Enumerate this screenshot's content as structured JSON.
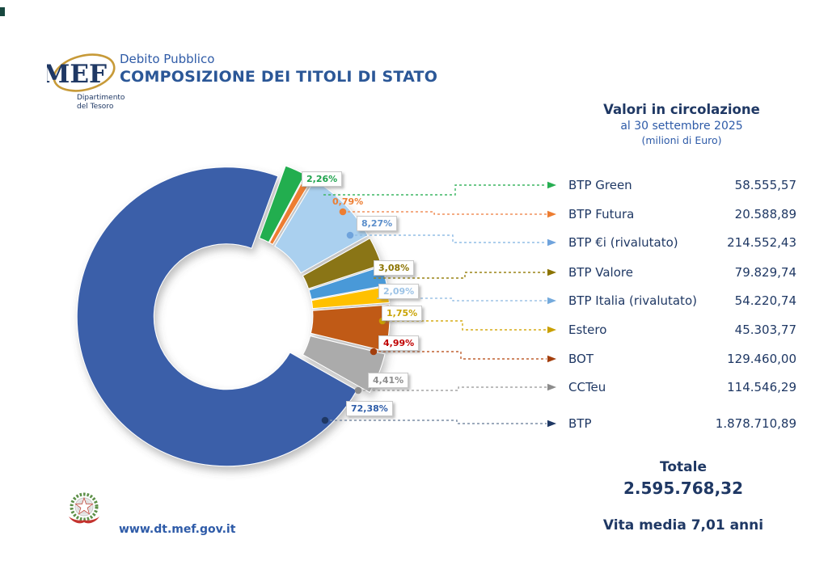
{
  "header": {
    "logo_text": "MEF",
    "logo_sub_line1": "Dipartimento",
    "logo_sub_line2": "del Tesoro",
    "pretitle": "Debito Pubblico",
    "title": "COMPOSIZIONE DEI TITOLI DI STATO"
  },
  "subheader": {
    "title": "Valori in circolazione",
    "date": "al 30 settembre 2025",
    "unit": "(milioni di Euro)"
  },
  "chart_data": {
    "type": "pie",
    "subtype": "donut",
    "title": "Composizione dei Titoli di Stato",
    "as_of": "al 30 settembre 2025",
    "unit": "milioni di Euro",
    "legend_position": "right",
    "series": [
      {
        "name": "BTP Green",
        "pct": 2.26,
        "pct_label": "2,26%",
        "value": "58.555,57",
        "color": "#24AE4F",
        "label_color": "#1FA34D",
        "line_color": "#3CB662",
        "arrow_color": "#27AE52"
      },
      {
        "name": "BTP Futura",
        "pct": 0.79,
        "pct_label": "0,79%",
        "value": "20.588,89",
        "color": "#ED7D31",
        "label_color": "#ED7D31",
        "line_color": "#F0915B",
        "arrow_color": "#ED7D31"
      },
      {
        "name": "BTP €i (rivalutato)",
        "pct": 8.27,
        "pct_label": "8,27%",
        "value": "214.552,43",
        "color": "#AAD0EF",
        "label_color": "#5B8ECB",
        "line_color": "#92BDE6",
        "arrow_color": "#6FA3DC"
      },
      {
        "name": "BTP Valore",
        "pct": 3.08,
        "pct_label": "3,08%",
        "value": "79.829,74",
        "color": "#8A7414",
        "label_color": "#8B7300",
        "line_color": "#9A8417",
        "arrow_color": "#8B7300"
      },
      {
        "name": "BTP Italia (rivalutato)",
        "pct": 2.09,
        "pct_label": "2,09%",
        "value": "54.220,74",
        "color": "#4A99D8",
        "label_color": "#9DC3E6",
        "line_color": "#9DC3E6",
        "arrow_color": "#74AADC"
      },
      {
        "name": "Estero",
        "pct": 1.75,
        "pct_label": "1,75%",
        "value": "45.303,77",
        "color": "#FFC000",
        "label_color": "#C9A304",
        "line_color": "#D5AC17",
        "arrow_color": "#C9A000"
      },
      {
        "name": "BOT",
        "pct": 4.99,
        "pct_label": "4,99%",
        "value": "129.460,00",
        "color": "#C05A17",
        "label_color": "#C00000",
        "line_color": "#C06030",
        "arrow_color": "#A33E0C"
      },
      {
        "name": "CCTeu",
        "pct": 4.41,
        "pct_label": "4,41%",
        "value": "114.546,29",
        "color": "#ABABAB",
        "label_color": "#8C8C8C",
        "line_color": "#A6A6A6",
        "arrow_color": "#8C8C8C"
      },
      {
        "name": "BTP",
        "pct": 72.38,
        "pct_label": "72,38%",
        "value": "1.878.710,89",
        "color": "#3A5FA9",
        "label_color": "#2D5CA8",
        "line_color": "#7C8DA6",
        "arrow_color": "#1F3864"
      }
    ],
    "total_label": "Totale",
    "total_value": "2.595.768,32",
    "note": "Vita media 7,01 anni"
  },
  "footer": {
    "url": "www.dt.mef.gov.it"
  }
}
